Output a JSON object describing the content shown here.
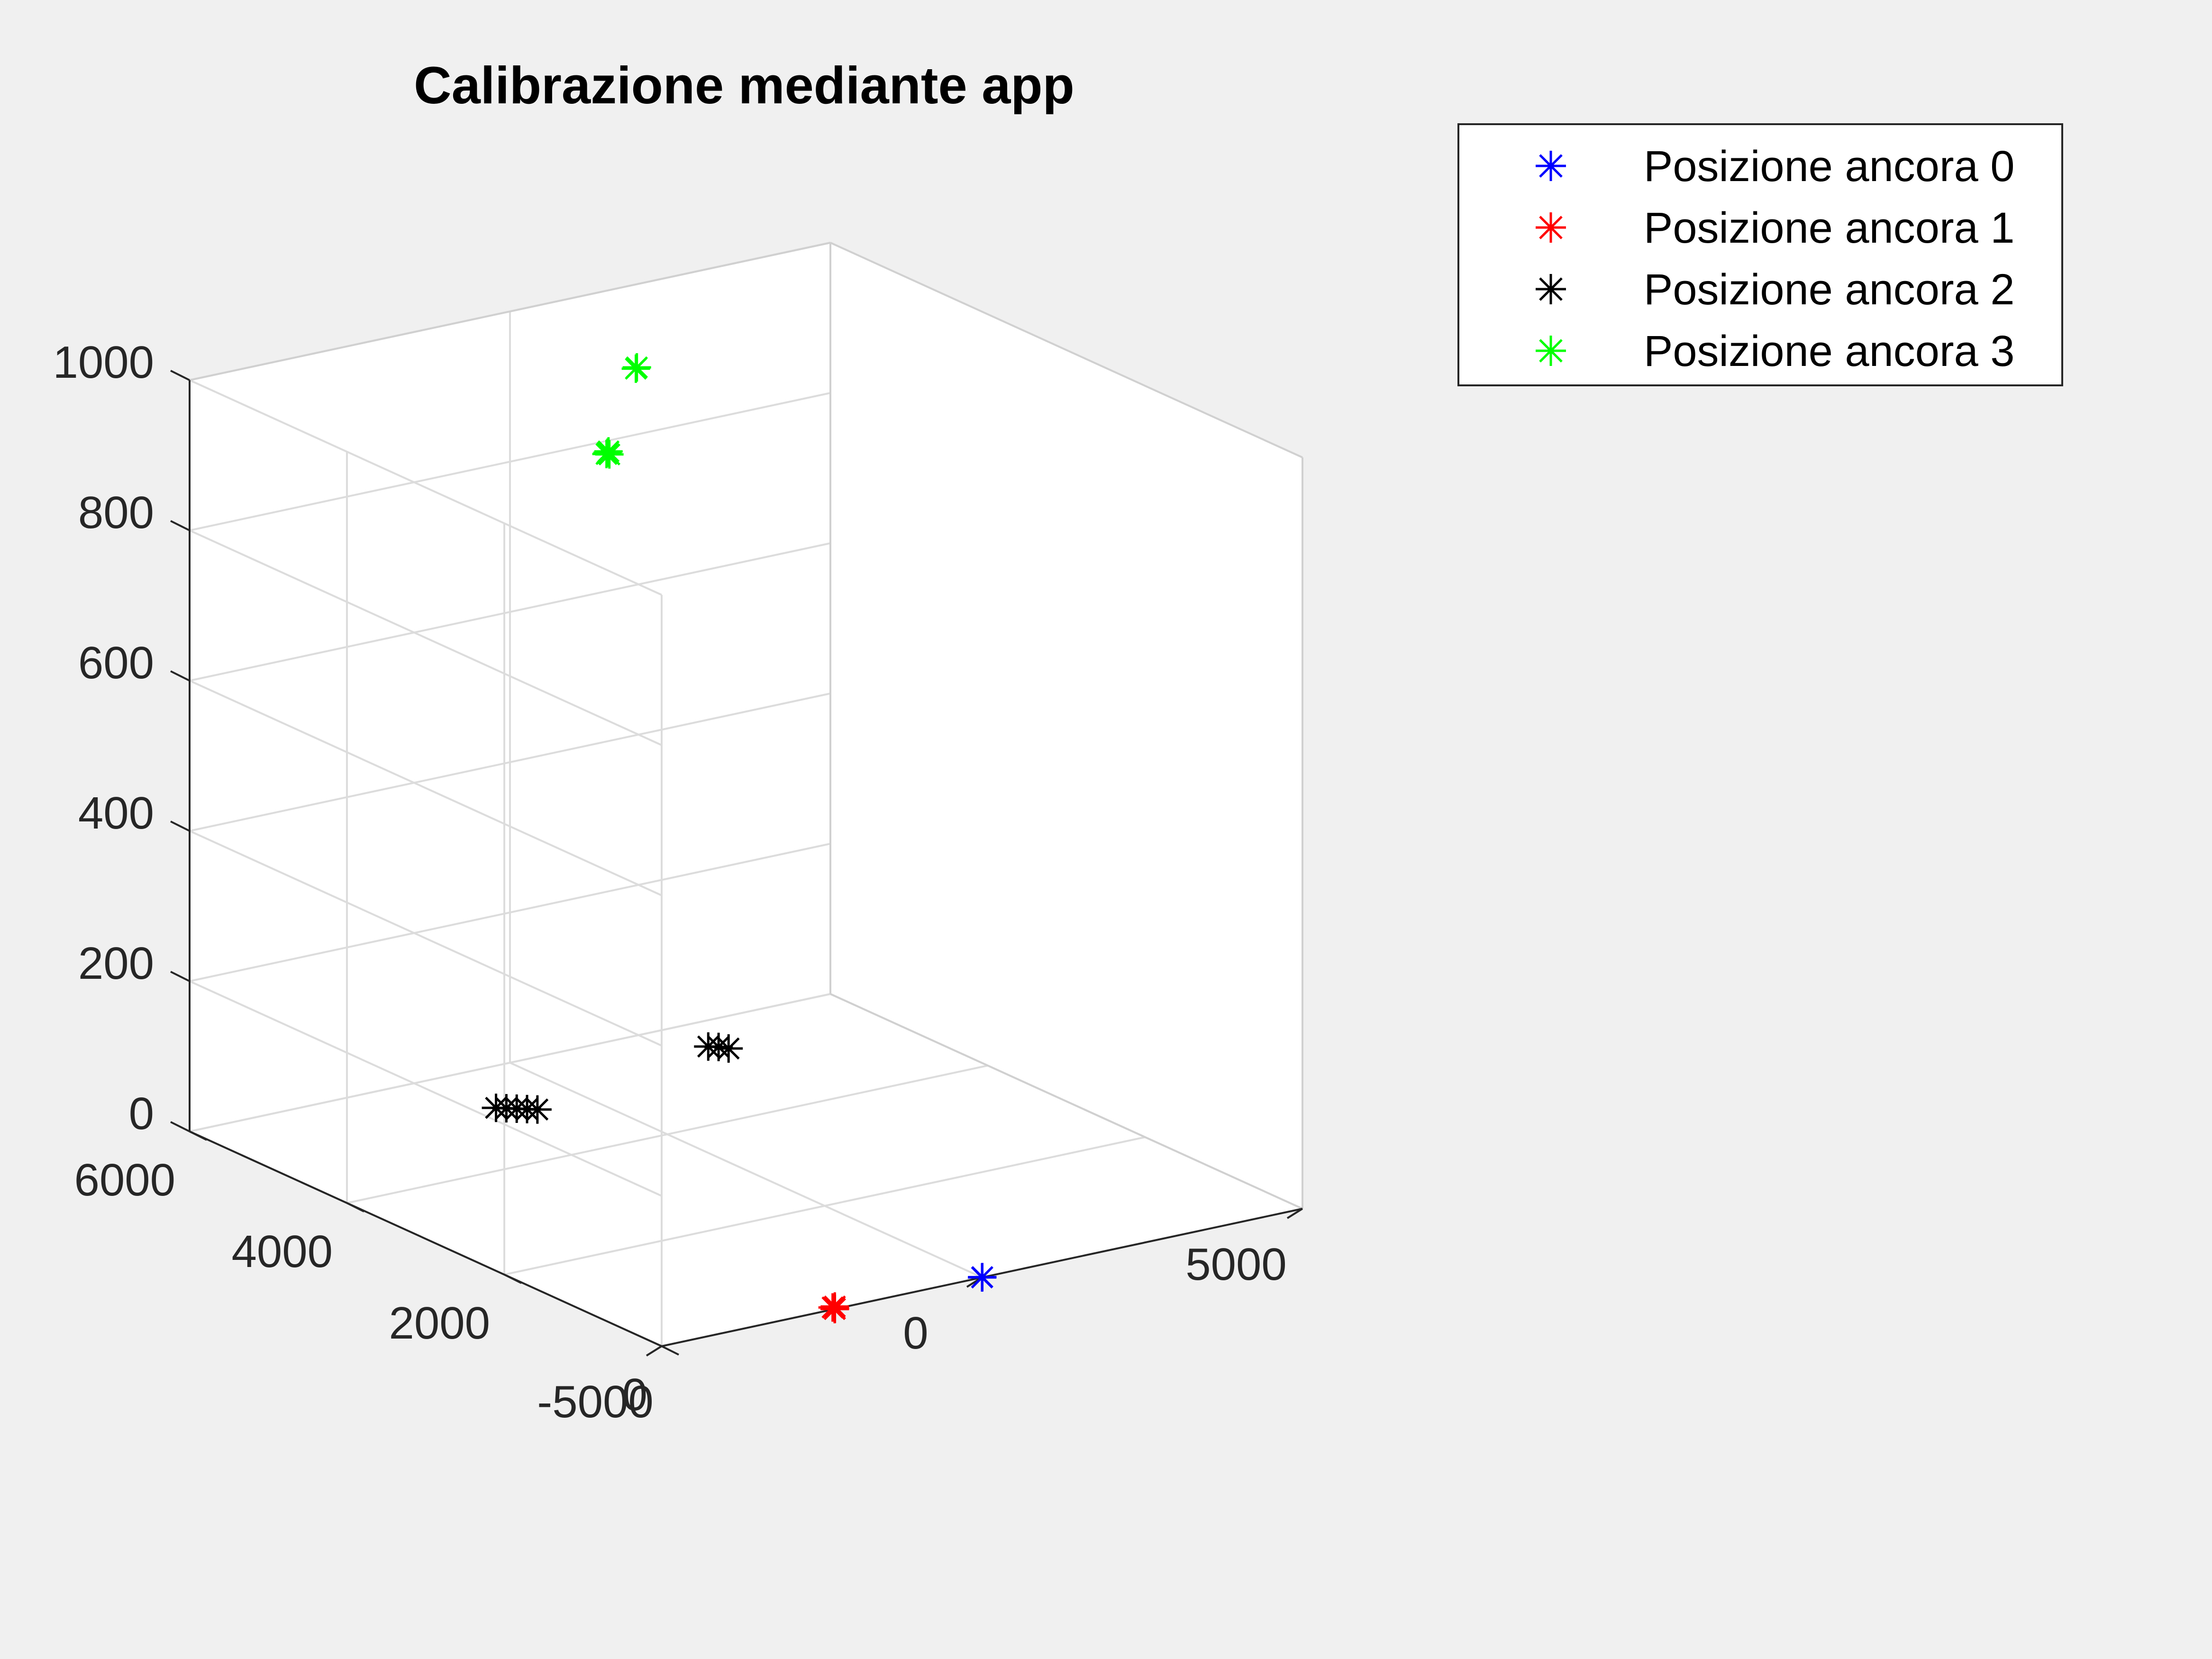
{
  "chart_data": {
    "type": "scatter",
    "title": "Calibrazione mediante app",
    "xlabel": "",
    "ylabel": "",
    "zlabel": "",
    "xlim": [
      -5000,
      5000
    ],
    "ylim": [
      0,
      6000
    ],
    "zlim": [
      0,
      1000
    ],
    "x_ticks": [
      -5000,
      0,
      5000
    ],
    "y_ticks": [
      0,
      2000,
      4000,
      6000
    ],
    "z_ticks": [
      0,
      200,
      400,
      600,
      800,
      1000
    ],
    "grid": true,
    "legend_position": "top-right, outside plot",
    "series": [
      {
        "name": "Posizione ancora 0",
        "color": "#0000ff",
        "marker": "*",
        "points": [
          {
            "x": 0,
            "y": 0,
            "z": 0
          },
          {
            "x": 10,
            "y": 5,
            "z": 0
          }
        ]
      },
      {
        "name": "Posizione ancora 1",
        "color": "#ff0000",
        "marker": "*",
        "points": [
          {
            "x": -2300,
            "y": 0,
            "z": 0
          },
          {
            "x": -2320,
            "y": 10,
            "z": 2
          },
          {
            "x": -2310,
            "y": -10,
            "z": 4
          },
          {
            "x": -2290,
            "y": 5,
            "z": 0
          }
        ]
      },
      {
        "name": "Posizione ancora 2",
        "color": "#000000",
        "marker": "*",
        "points": [
          {
            "x": -1200,
            "y": 5200,
            "z": 0
          },
          {
            "x": -1100,
            "y": 5150,
            "z": 0
          },
          {
            "x": -1000,
            "y": 5100,
            "z": 0
          },
          {
            "x": -900,
            "y": 5050,
            "z": 0
          },
          {
            "x": -800,
            "y": 5000,
            "z": 0
          },
          {
            "x": 2480,
            "y": 5500,
            "z": 0
          },
          {
            "x": 2580,
            "y": 5450,
            "z": 0
          },
          {
            "x": 2650,
            "y": 5380,
            "z": 0
          }
        ]
      },
      {
        "name": "Posizione ancora 3",
        "color": "#00ff00",
        "marker": "*",
        "points": [
          {
            "x": -2300,
            "y": 2900,
            "z": 1000
          },
          {
            "x": -2260,
            "y": 2920,
            "z": 1000
          },
          {
            "x": -2220,
            "y": 2940,
            "z": 1000
          },
          {
            "x": -2280,
            "y": 2880,
            "z": 1000
          },
          {
            "x": 0,
            "y": 4400,
            "z": 1000
          },
          {
            "x": 40,
            "y": 4420,
            "z": 1000
          }
        ]
      }
    ]
  }
}
